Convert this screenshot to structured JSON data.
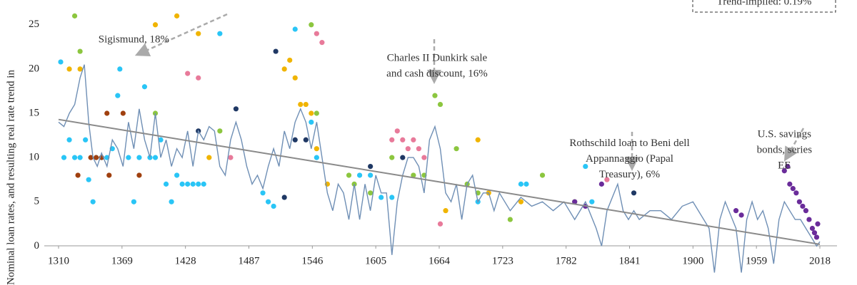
{
  "chart_data": {
    "type": "scatter",
    "y_label": "Nominal loan rates, and resulting real rate trend in",
    "xlim": [
      1310,
      2018
    ],
    "xticks": [
      1310,
      1369,
      1428,
      1487,
      1546,
      1605,
      1664,
      1723,
      1782,
      1841,
      1900,
      1959,
      2018
    ],
    "ylim": [
      -4.4,
      27.8
    ],
    "yticks": [
      0,
      5,
      10,
      15,
      20,
      25
    ],
    "annotations": [
      {
        "lines": [
          "Sigismund, 18%"
        ],
        "x": 1380,
        "y": 22.5
      },
      {
        "lines": [
          "Charles II Dunkirk sale",
          "and cash discount, 16%"
        ],
        "x": 1662,
        "y": 19.5
      },
      {
        "lines": [
          "Rothschild loan to Beni dell",
          "Appannaggio (Papal",
          "Treasury), 6%"
        ],
        "x": 1841,
        "y": 9
      },
      {
        "lines": [
          "U.S. savings",
          "bonds, series",
          "EE"
        ],
        "x": 1985,
        "y": 10
      },
      {
        "lines": [
          "Trend-implied: 0.19%"
        ]
      }
    ],
    "series": [
      {
        "type": "scatter",
        "color": "#29c5f6",
        "x": [
          1312,
          1315,
          1320,
          1325,
          1330,
          1335,
          1338,
          1342,
          1345,
          1350,
          1355,
          1360,
          1365,
          1367,
          1375,
          1380,
          1385,
          1390,
          1395,
          1400,
          1405,
          1410,
          1415,
          1420,
          1425,
          1430,
          1435,
          1440,
          1445,
          1460,
          1500,
          1505,
          1510,
          1530,
          1545,
          1550,
          1590,
          1600,
          1610,
          1620,
          1700,
          1740,
          1745,
          1800,
          1806
        ],
        "values": [
          20.8,
          10,
          12,
          10,
          10,
          12,
          7.5,
          5,
          10,
          10,
          10,
          11,
          17,
          20,
          10,
          5,
          10,
          18,
          10,
          10,
          12,
          7,
          5,
          8,
          7,
          7,
          7,
          7,
          7,
          24,
          6,
          5,
          4.5,
          24.5,
          14,
          10,
          8,
          8,
          5.5,
          5.5,
          5,
          7,
          7,
          9,
          5
        ]
      },
      {
        "type": "scatter",
        "color": "#f0b400",
        "x": [
          1320,
          1330,
          1400,
          1420,
          1440,
          1450,
          1520,
          1525,
          1530,
          1535,
          1540,
          1545,
          1550,
          1560,
          1670,
          1700,
          1710,
          1740
        ],
        "values": [
          20,
          20,
          25,
          26,
          24,
          10,
          20,
          21,
          19,
          16,
          16,
          15,
          11,
          7,
          4,
          12,
          6,
          5
        ]
      },
      {
        "type": "scatter",
        "color": "#8cc63f",
        "x": [
          1325,
          1330,
          1400,
          1460,
          1545,
          1550,
          1580,
          1585,
          1600,
          1620,
          1640,
          1650,
          1660,
          1665,
          1680,
          1690,
          1700,
          1730,
          1760,
          1790
        ],
        "values": [
          26,
          22,
          15,
          13,
          25,
          15,
          8,
          7,
          6,
          10,
          8,
          8,
          17,
          16,
          11,
          7,
          6,
          3,
          8,
          5
        ]
      },
      {
        "type": "scatter",
        "color": "#e87a9a",
        "x": [
          1430,
          1440,
          1470,
          1550,
          1555,
          1620,
          1625,
          1630,
          1635,
          1640,
          1645,
          1650,
          1665,
          1820
        ],
        "values": [
          19.5,
          19,
          10,
          24,
          23,
          12,
          13,
          12,
          11,
          12,
          11,
          10,
          2.5,
          7.5
        ]
      },
      {
        "type": "scatter",
        "color": "#6a2c9a",
        "x": [
          1790,
          1800,
          1815,
          1940,
          1945,
          1985,
          1988,
          1990,
          1993,
          1996,
          1999,
          2002,
          2005,
          2008,
          2011,
          2013,
          2015,
          2016
        ],
        "values": [
          5,
          4.5,
          7,
          4,
          3.5,
          8.5,
          9,
          7,
          6.5,
          6,
          5,
          4.5,
          4,
          3,
          2,
          1.5,
          1,
          2.5
        ]
      },
      {
        "type": "scatter",
        "color": "#a0400f",
        "x": [
          1328,
          1340,
          1345,
          1350,
          1355,
          1357,
          1370,
          1385
        ],
        "values": [
          8,
          10,
          10,
          10,
          15,
          8,
          15,
          8
        ]
      },
      {
        "type": "scatter",
        "color": "#1f3864",
        "x": [
          1440,
          1475,
          1512,
          1520,
          1530,
          1540,
          1600,
          1630,
          1845
        ],
        "values": [
          13,
          15.5,
          22,
          5.5,
          12,
          12,
          9,
          10,
          6
        ]
      },
      {
        "type": "line",
        "color": "#6f8fb5",
        "x": [
          1310,
          1315,
          1320,
          1325,
          1330,
          1334,
          1338,
          1342,
          1346,
          1350,
          1355,
          1360,
          1365,
          1370,
          1375,
          1380,
          1385,
          1390,
          1395,
          1400,
          1405,
          1410,
          1415,
          1420,
          1425,
          1430,
          1435,
          1440,
          1445,
          1450,
          1455,
          1460,
          1465,
          1470,
          1475,
          1480,
          1485,
          1490,
          1495,
          1500,
          1505,
          1510,
          1515,
          1520,
          1525,
          1530,
          1535,
          1540,
          1545,
          1550,
          1555,
          1560,
          1565,
          1570,
          1575,
          1580,
          1585,
          1590,
          1595,
          1600,
          1605,
          1610,
          1615,
          1620,
          1625,
          1630,
          1635,
          1640,
          1645,
          1650,
          1655,
          1660,
          1665,
          1670,
          1675,
          1680,
          1685,
          1690,
          1695,
          1700,
          1705,
          1710,
          1715,
          1720,
          1725,
          1730,
          1740,
          1750,
          1760,
          1770,
          1780,
          1790,
          1800,
          1810,
          1815,
          1820,
          1830,
          1835,
          1840,
          1845,
          1850,
          1860,
          1870,
          1880,
          1890,
          1900,
          1910,
          1915,
          1920,
          1925,
          1930,
          1940,
          1945,
          1950,
          1955,
          1960,
          1965,
          1970,
          1975,
          1980,
          1985,
          1990,
          1995,
          2000,
          2005,
          2010,
          2015,
          2018
        ],
        "values": [
          14,
          13.5,
          15,
          16,
          19,
          20.5,
          14,
          10,
          9,
          10.5,
          9,
          12,
          11,
          9,
          14,
          11,
          15.5,
          12,
          10,
          15,
          10,
          12,
          9,
          11,
          10,
          13,
          9,
          13,
          12,
          13.5,
          13,
          9,
          8,
          12,
          14,
          12,
          9,
          7,
          8,
          6.5,
          9,
          11,
          9,
          13,
          11,
          14,
          15.5,
          14,
          11,
          14,
          10,
          6,
          4,
          7,
          6,
          3,
          7,
          3,
          7,
          4,
          8,
          6,
          6,
          -1,
          5,
          8,
          10,
          10,
          9,
          6,
          12,
          13.5,
          11,
          6,
          5,
          7,
          3,
          7,
          8,
          5,
          6,
          6,
          4,
          6,
          5,
          4,
          5.5,
          4.5,
          5,
          4,
          5,
          3,
          5,
          2,
          0,
          4,
          7,
          4,
          3,
          4,
          3,
          4,
          4,
          3,
          4.5,
          5,
          3,
          2,
          -3,
          3,
          5,
          2,
          -3,
          3,
          5,
          3,
          4,
          2,
          -2,
          3,
          5,
          4,
          3,
          3,
          2,
          1,
          0,
          0.5
        ]
      },
      {
        "type": "line",
        "color": "#8a8a8a",
        "x": [
          1310,
          2018
        ],
        "values": [
          14.3,
          0.2
        ]
      }
    ]
  }
}
